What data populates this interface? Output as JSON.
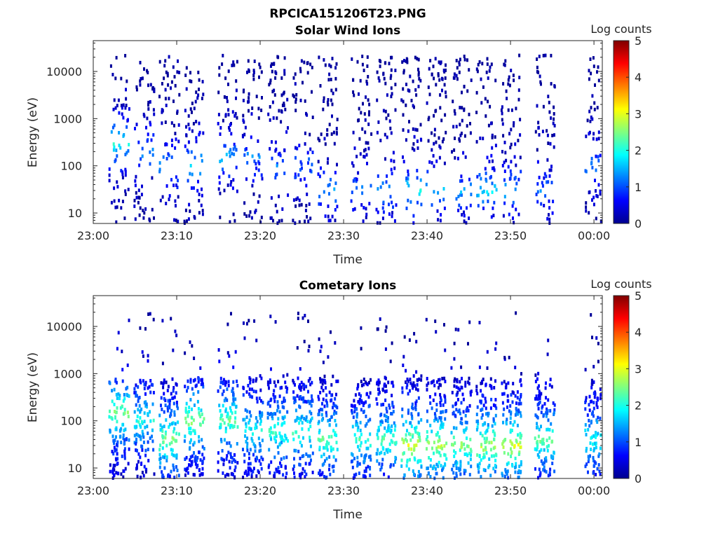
{
  "figure": {
    "title": "RPCICA151206T23.PNG"
  },
  "chart_data": [
    {
      "type": "heatmap",
      "title": "Solar Wind Ions",
      "xlabel": "Time",
      "ylabel": "Energy (eV)",
      "x_ticks": [
        "23:00",
        "23:10",
        "23:20",
        "23:30",
        "23:40",
        "23:50",
        "00:00"
      ],
      "x_range": [
        "23:00",
        "00:01"
      ],
      "y_scale": "log",
      "y_ticks": [
        10,
        100,
        1000,
        10000
      ],
      "y_tick_labels": [
        "10",
        "100",
        "1000",
        "10000"
      ],
      "ylim": [
        6,
        45000
      ],
      "colorbar": {
        "label": "Log counts",
        "range": [
          0,
          5
        ],
        "ticks": [
          "0",
          "1",
          "2",
          "3",
          "4",
          "5"
        ],
        "colormap": "jet"
      },
      "grid": false,
      "scan_times": [
        "23:03",
        "23:06",
        "23:09",
        "23:12",
        "23:16",
        "23:19",
        "23:22",
        "23:25",
        "23:28",
        "23:32",
        "23:35",
        "23:38",
        "23:41",
        "23:44",
        "23:47",
        "23:50",
        "23:54",
        "00:00"
      ],
      "peak_log_counts": [
        2.0,
        1.4,
        1.6,
        1.8,
        1.6,
        1.3,
        1.2,
        1.2,
        1.5,
        1.3,
        1.5,
        2.0,
        1.6,
        1.5,
        1.8,
        1.6,
        1.3,
        1.3
      ],
      "peak_energy_eV": [
        300,
        200,
        100,
        100,
        150,
        150,
        100,
        100,
        30,
        30,
        30,
        30,
        30,
        30,
        30,
        30,
        30,
        100
      ]
    },
    {
      "type": "heatmap",
      "title": "Cometary Ions",
      "xlabel": "Time",
      "ylabel": "Energy (eV)",
      "x_ticks": [
        "23:00",
        "23:10",
        "23:20",
        "23:30",
        "23:40",
        "23:50",
        "00:00"
      ],
      "x_range": [
        "23:00",
        "00:01"
      ],
      "y_scale": "log",
      "y_ticks": [
        10,
        100,
        1000,
        10000
      ],
      "y_tick_labels": [
        "10",
        "100",
        "1000",
        "10000"
      ],
      "ylim": [
        6,
        45000
      ],
      "colorbar": {
        "label": "Log counts",
        "range": [
          0,
          5
        ],
        "ticks": [
          "0",
          "1",
          "2",
          "3",
          "4",
          "5"
        ],
        "colormap": "jet"
      },
      "grid": false,
      "scan_times": [
        "23:03",
        "23:06",
        "23:09",
        "23:12",
        "23:16",
        "23:19",
        "23:22",
        "23:25",
        "23:28",
        "23:32",
        "23:35",
        "23:38",
        "23:41",
        "23:44",
        "23:47",
        "23:50",
        "23:54",
        "00:00"
      ],
      "peak_log_counts": [
        2.5,
        2.0,
        2.6,
        2.6,
        2.4,
        2.0,
        2.2,
        2.2,
        2.4,
        2.2,
        2.3,
        3.0,
        2.8,
        2.6,
        2.8,
        3.0,
        2.4,
        2.0
      ],
      "peak_energy_eV": [
        150,
        100,
        40,
        100,
        100,
        60,
        60,
        60,
        40,
        40,
        40,
        30,
        30,
        30,
        30,
        30,
        40,
        40
      ]
    }
  ]
}
